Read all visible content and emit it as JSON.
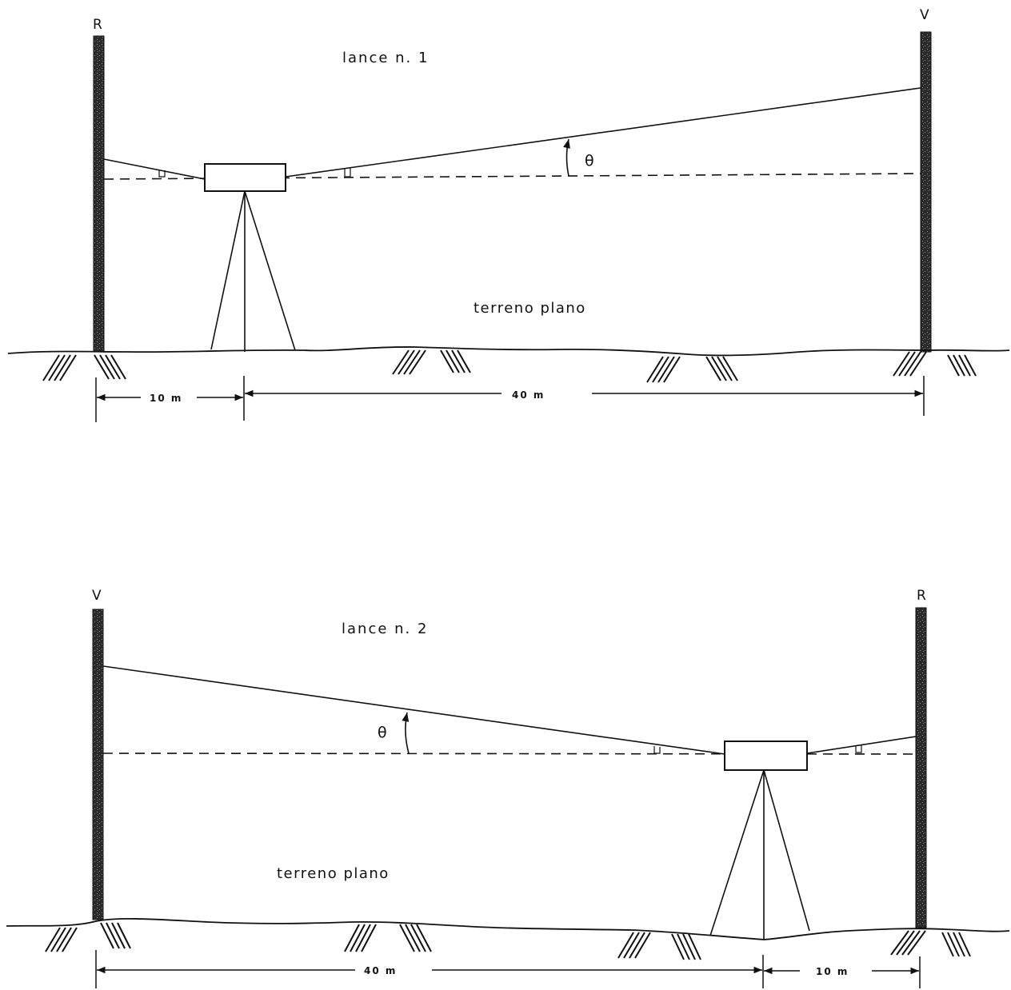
{
  "diagram_1": {
    "title": "lance n. 1",
    "left_pole_label": "R",
    "right_pole_label": "V",
    "terrain_label": "terreno plano",
    "angle_label": "θ",
    "dim_left": "10 m",
    "dim_right": "40 m"
  },
  "diagram_2": {
    "title": "lance n. 2",
    "left_pole_label": "V",
    "right_pole_label": "R",
    "terrain_label": "terreno plano",
    "angle_label": "θ",
    "dim_left": "40 m",
    "dim_right": "10 m"
  },
  "colors": {
    "ink": "#111111",
    "pole": "#333333"
  }
}
